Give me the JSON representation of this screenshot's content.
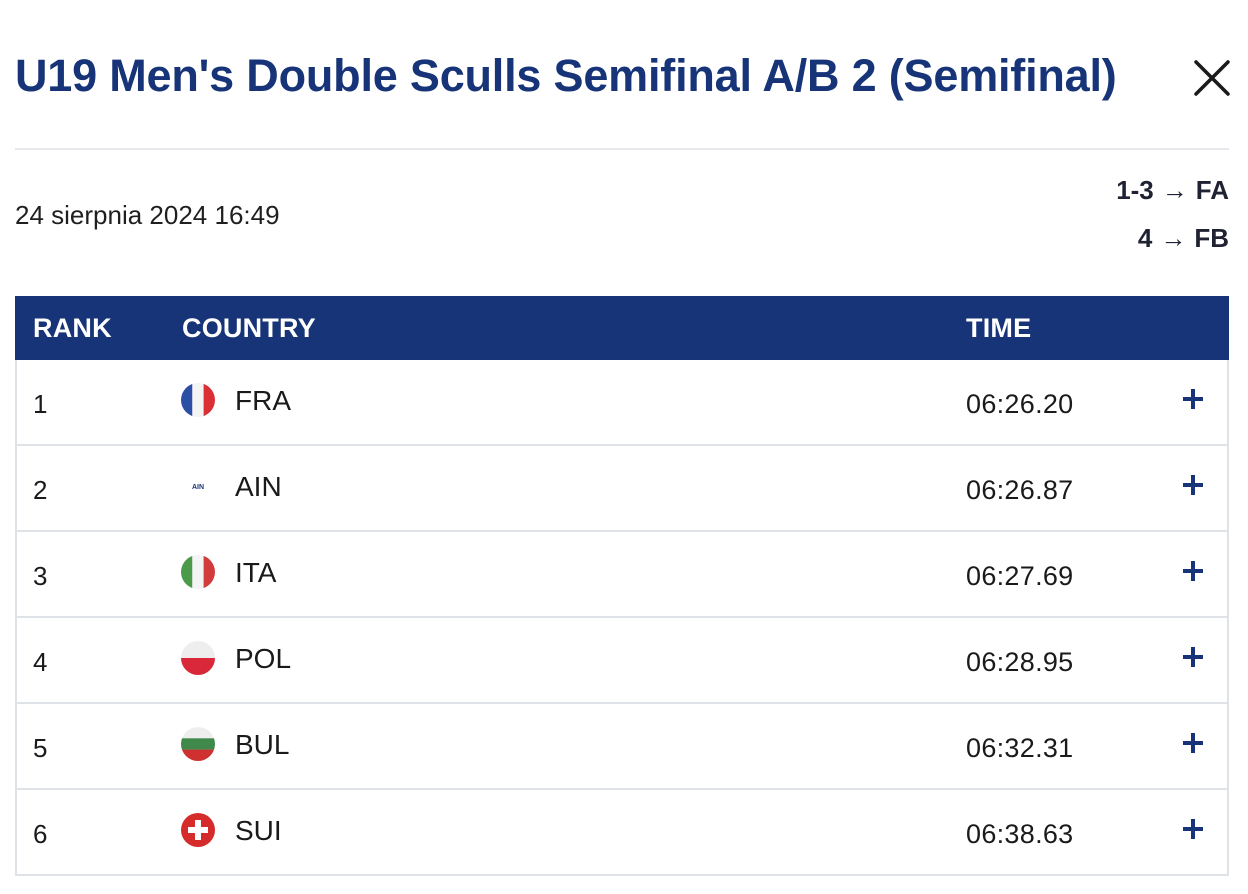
{
  "header": {
    "title": "U19 Men's Double Sculls Semifinal A/B 2 (Semifinal)",
    "close_icon": "close-icon"
  },
  "meta": {
    "date": "24 sierpnia 2024 16:49",
    "progression": [
      {
        "ranks": "1-3",
        "arrow": "→",
        "final": "FA"
      },
      {
        "ranks": "4",
        "arrow": "→",
        "final": "FB"
      }
    ]
  },
  "table": {
    "columns": {
      "rank": "RANK",
      "country": "COUNTRY",
      "time": "TIME"
    },
    "rows": [
      {
        "rank": "1",
        "country": "FRA",
        "time": "06:26.20",
        "flag": "flag-fra-icon"
      },
      {
        "rank": "2",
        "country": "AIN",
        "time": "06:26.87",
        "flag": "flag-ain-icon",
        "flag_text": "AIN"
      },
      {
        "rank": "3",
        "country": "ITA",
        "time": "06:27.69",
        "flag": "flag-ita-icon"
      },
      {
        "rank": "4",
        "country": "POL",
        "time": "06:28.95",
        "flag": "flag-pol-icon"
      },
      {
        "rank": "5",
        "country": "BUL",
        "time": "06:32.31",
        "flag": "flag-bul-icon"
      },
      {
        "rank": "6",
        "country": "SUI",
        "time": "06:38.63",
        "flag": "flag-sui-icon"
      }
    ]
  },
  "colors": {
    "brand_navy": "#173478",
    "border": "#dfe2e7"
  }
}
